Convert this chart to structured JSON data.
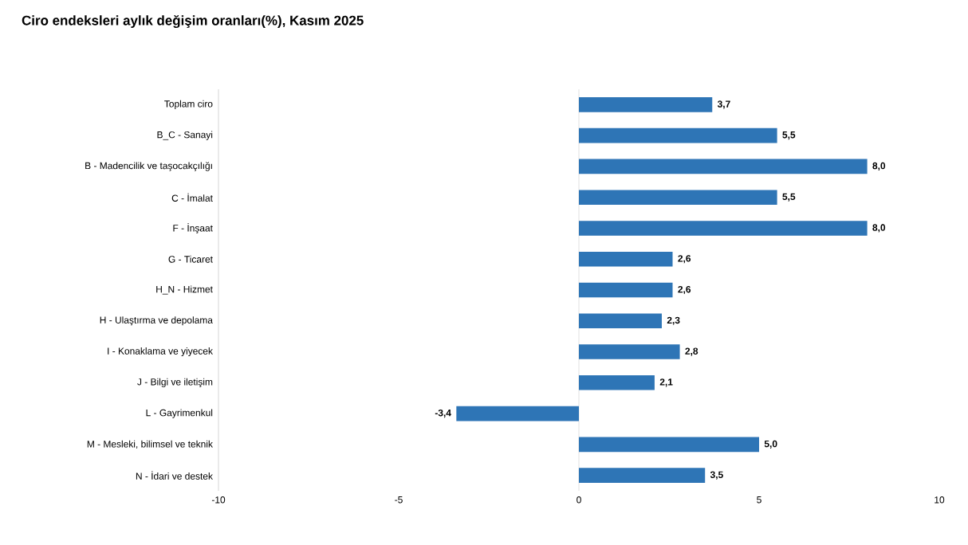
{
  "chart_data": {
    "type": "bar",
    "orientation": "horizontal",
    "title": "Ciro endeksleri aylık değişim oranları(%), Kasım 2025",
    "categories": [
      "Toplam ciro",
      "B_C - Sanayi",
      "B - Madencilik ve taşocakçılığı",
      "C - İmalat",
      "F - İnşaat",
      "G - Ticaret",
      "H_N - Hizmet",
      "H - Ulaştırma ve depolama",
      "I - Konaklama ve yiyecek",
      "J - Bilgi ve iletişim",
      "L - Gayrimenkul",
      "M - Mesleki, bilimsel ve teknik",
      "N - İdari ve destek"
    ],
    "values": [
      3.7,
      5.5,
      8.0,
      5.5,
      8.0,
      2.6,
      2.6,
      2.3,
      2.8,
      2.1,
      -3.4,
      5.0,
      3.5
    ],
    "value_labels": [
      "3,7",
      "5,5",
      "8,0",
      "5,5",
      "8,0",
      "2,6",
      "2,6",
      "2,3",
      "2,8",
      "2,1",
      "-3,4",
      "5,0",
      "3,5"
    ],
    "color": "#2e75b6",
    "xlim": [
      -10,
      10
    ],
    "xticks": [
      -10,
      -5,
      0,
      5,
      10
    ],
    "ref_lines": [
      {
        "axis": "x",
        "value": 0,
        "color": "#d9d9d9"
      }
    ],
    "grid": false
  }
}
